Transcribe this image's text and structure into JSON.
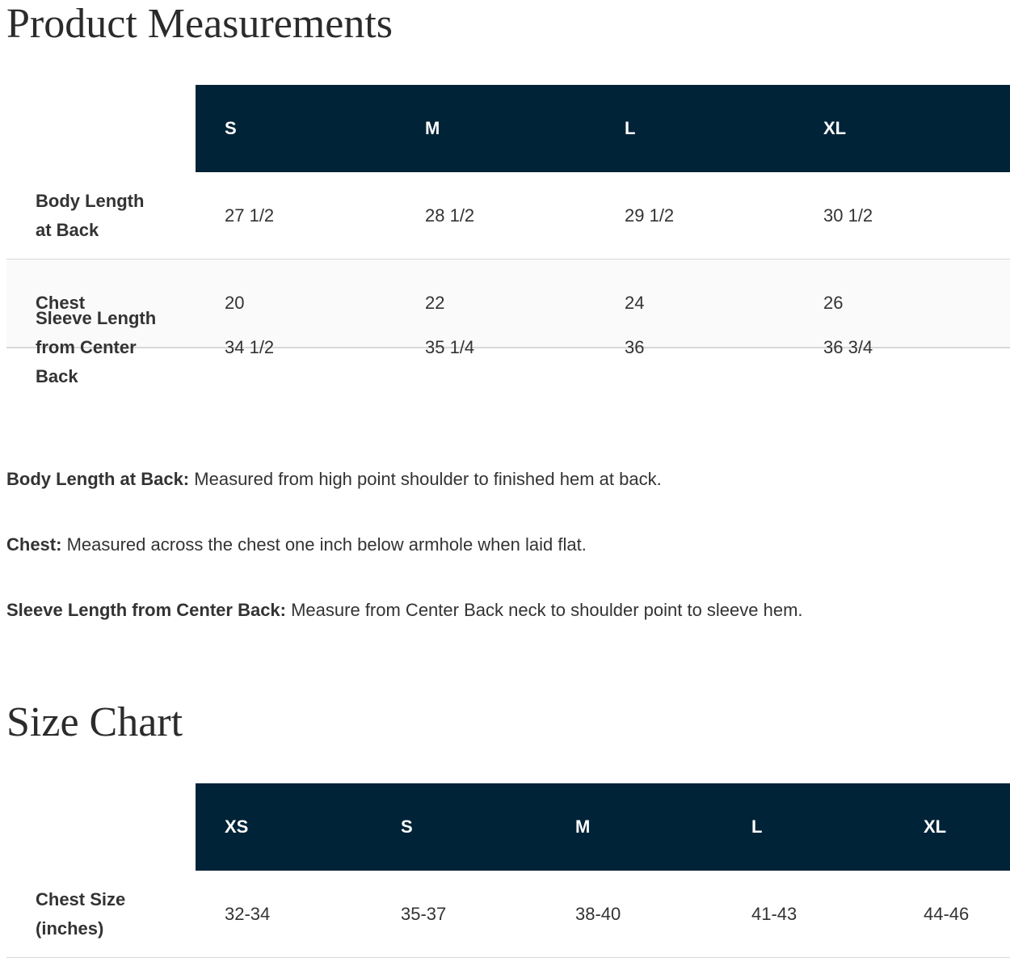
{
  "sections": [
    {
      "title": "Product Measurements",
      "table": {
        "header": [
          "S",
          "M",
          "L",
          "XL"
        ],
        "rows": [
          {
            "label": "Body Length at Back",
            "cells": [
              "27 1/2",
              "28 1/2",
              "29 1/2",
              "30 1/2"
            ]
          },
          {
            "label": "Chest",
            "cells": [
              "20",
              "22",
              "24",
              "26"
            ]
          },
          {
            "label": "Sleeve Length from Center Back",
            "cells": [
              "34 1/2",
              "35 1/4",
              "36",
              "36 3/4"
            ]
          }
        ]
      },
      "notes": [
        {
          "term": "Body Length at Back:",
          "text": "Measured from high point shoulder to finished hem at back."
        },
        {
          "term": "Chest:",
          "text": "Measured across the chest one inch below armhole when laid flat."
        },
        {
          "term": "Sleeve Length from Center Back:",
          "text": "Measure from Center Back neck to shoulder point to sleeve hem."
        }
      ]
    },
    {
      "title": "Size Chart",
      "table": {
        "header": [
          "XS",
          "S",
          "M",
          "L",
          "XL"
        ],
        "rows": [
          {
            "label": "Chest Size (inches)",
            "cells": [
              "32-34",
              "35-37",
              "38-40",
              "41-43",
              "44-46"
            ]
          }
        ]
      }
    }
  ]
}
